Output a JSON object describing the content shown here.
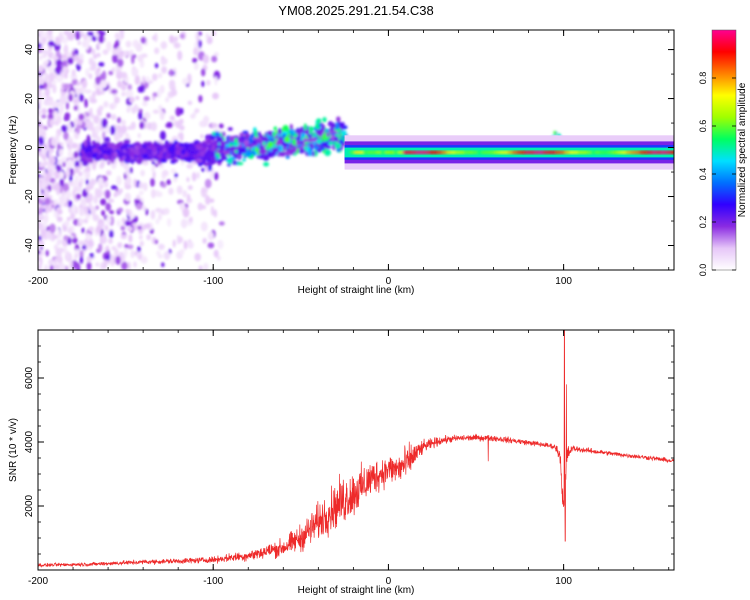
{
  "figure_title": "YM08.2025.291.21.54.C38",
  "chart_data": [
    {
      "type": "heatmap",
      "title": "YM08.2025.291.21.54.C38",
      "xlabel": "Height of straight line (km)",
      "ylabel": "Frequency (Hz)",
      "xlim": [
        -200,
        163
      ],
      "ylim": [
        -50,
        48
      ],
      "xticks": [
        -200,
        -100,
        0,
        100
      ],
      "yticks": [
        -40,
        -20,
        0,
        20,
        40
      ],
      "x_tick_labels": [
        "-200",
        "-100",
        "0",
        "100"
      ],
      "y_tick_labels": [
        "-40",
        "-20",
        "0",
        "20",
        "40"
      ],
      "colorbar": {
        "label": "Normalized spectral amplitude",
        "range": [
          0,
          1
        ],
        "ticks": [
          0.0,
          0.2,
          0.4,
          0.6,
          0.8
        ],
        "tick_labels": [
          "0.0",
          "0.2",
          "0.4",
          "0.6",
          "0.8"
        ],
        "colormap_stops": [
          "#ffffff",
          "#e6c6f8",
          "#8a2be2",
          "#3000ff",
          "#0070ff",
          "#00e0ff",
          "#00ff60",
          "#a0ff00",
          "#ffff00",
          "#ff8000",
          "#ff0000",
          "#ff0090"
        ]
      },
      "features": {
        "noise_region_x": [
          -200,
          -110
        ],
        "drifting_signal_x": [
          -175,
          -25
        ],
        "carrier_x": [
          -25,
          163
        ],
        "carrier_frequency": -2,
        "carrier_peak_amplitude": 0.95,
        "feature_at_95km": "spike to about +5 Hz"
      }
    },
    {
      "type": "line",
      "xlabel": "Height of straight line (km)",
      "ylabel": "SNR (10 * v/v)",
      "xlim": [
        -200,
        163
      ],
      "ylim": [
        0,
        7500
      ],
      "xticks": [
        -200,
        -100,
        0,
        100
      ],
      "yticks": [
        2000,
        4000,
        6000
      ],
      "x_tick_labels": [
        "-200",
        "-100",
        "0",
        "100"
      ],
      "y_tick_labels": [
        "2000",
        "4000",
        "6000"
      ],
      "color": "#ee2a2a",
      "envelope": {
        "x": [
          -200,
          -170,
          -140,
          -120,
          -100,
          -80,
          -60,
          -50,
          -40,
          -30,
          -25,
          -20,
          -15,
          -10,
          -5,
          0,
          5,
          10,
          15,
          20,
          30,
          40,
          50,
          60,
          70,
          80,
          90,
          95,
          98,
          100,
          102,
          105,
          110,
          130,
          150,
          163
        ],
        "y": [
          150,
          180,
          250,
          280,
          320,
          450,
          700,
          1000,
          1500,
          2000,
          2200,
          2400,
          2600,
          2850,
          3000,
          3150,
          3150,
          3300,
          3600,
          3850,
          4050,
          4120,
          4130,
          4120,
          4050,
          3980,
          3900,
          3850,
          3600,
          1800,
          3600,
          3800,
          3760,
          3620,
          3500,
          3400
        ],
        "noise": [
          80,
          90,
          110,
          130,
          150,
          250,
          450,
          650,
          900,
          1100,
          1200,
          1100,
          1000,
          900,
          800,
          700,
          800,
          900,
          600,
          300,
          200,
          160,
          150,
          150,
          140,
          130,
          120,
          120,
          400,
          600,
          400,
          150,
          130,
          110,
          110,
          110
        ]
      },
      "spikes": [
        {
          "x": 100.5,
          "y": 7500
        },
        {
          "x": 100.9,
          "y": 900
        },
        {
          "x": 101.6,
          "y": 5800
        },
        {
          "x": 57,
          "y": 3400
        }
      ]
    }
  ]
}
